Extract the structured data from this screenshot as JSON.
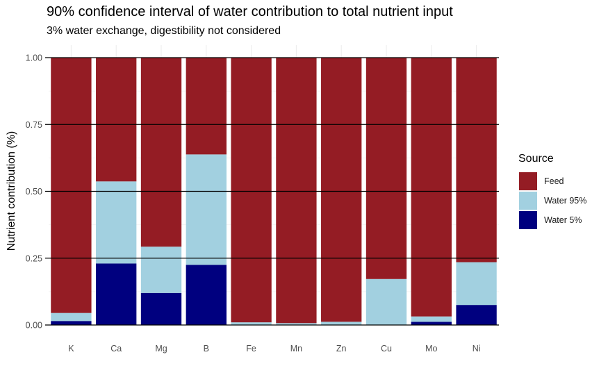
{
  "chart_data": {
    "type": "bar",
    "stacked": true,
    "title": "90% confidence interval of water contribution to total nutrient input",
    "subtitle": "3% water exchange, digestibility not considered",
    "xlabel": "",
    "ylabel": "Nutrient contribution (%)",
    "ylim": [
      0,
      1
    ],
    "yticks": [
      "0.00",
      "0.25",
      "0.50",
      "0.75",
      "1.00"
    ],
    "categories": [
      "K",
      "Ca",
      "Mg",
      "B",
      "Fe",
      "Mn",
      "Zn",
      "Cu",
      "Mo",
      "Ni"
    ],
    "series": [
      {
        "name": "Water 5%",
        "color": "#00007F",
        "values": [
          0.015,
          0.23,
          0.12,
          0.225,
          0.0,
          0.0,
          0.0,
          0.0,
          0.012,
          0.075
        ]
      },
      {
        "name": "Water 95%",
        "color": "#A2D0E0",
        "values": [
          0.03,
          0.307,
          0.173,
          0.413,
          0.01,
          0.007,
          0.012,
          0.172,
          0.02,
          0.16
        ]
      },
      {
        "name": "Feed",
        "color": "#941C24",
        "values": [
          0.955,
          0.463,
          0.707,
          0.362,
          0.99,
          0.993,
          0.988,
          0.828,
          0.968,
          0.765
        ]
      }
    ],
    "legend": {
      "title": "Source",
      "placement": "right",
      "order": [
        "Feed",
        "Water 95%",
        "Water 5%"
      ]
    },
    "grid": true
  }
}
